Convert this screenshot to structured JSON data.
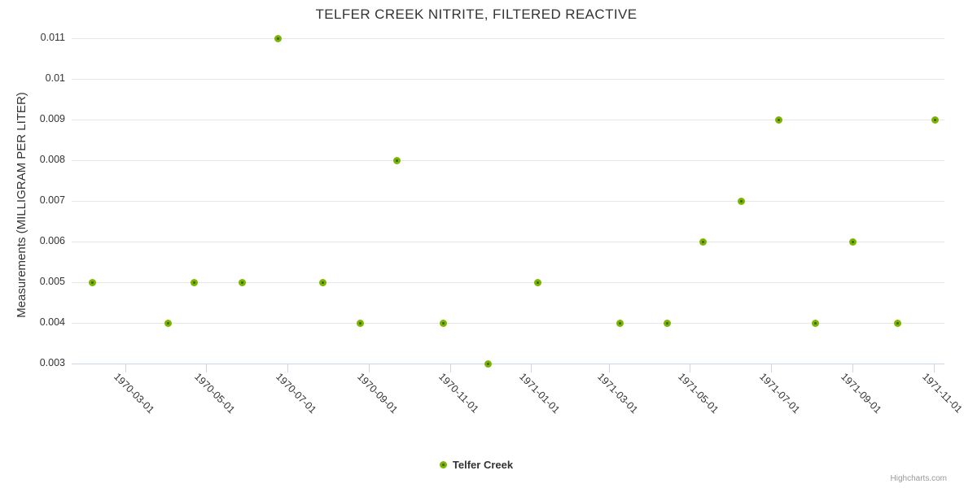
{
  "credits": "Highcharts.com",
  "chart_data": {
    "type": "scatter",
    "title": "TELFER CREEK NITRITE, FILTERED REACTIVE",
    "xlabel": "",
    "ylabel": "Measurements (MILLIGRAM PER LITER)",
    "ylim": [
      0.003,
      0.011
    ],
    "y_tick_interval": 0.001,
    "y_tick_labels": [
      "0.003",
      "0.004",
      "0.005",
      "0.006",
      "0.007",
      "0.008",
      "0.009",
      "0.01",
      "0.011"
    ],
    "x_tick_labels": [
      "1970-03-01",
      "1970-05-01",
      "1970-07-01",
      "1970-09-01",
      "1970-11-01",
      "1971-01-01",
      "1971-03-01",
      "1971-05-01",
      "1971-07-01",
      "1971-09-01",
      "1971-11-01"
    ],
    "grid": true,
    "legend_position": "bottom-center",
    "colors": {
      "marker_outer": "#7cb500",
      "marker_inner": "#3a6c00",
      "grid_line": "#e6e6e6",
      "axis_line": "#ccd6eb",
      "text": "#333333",
      "credits": "#999999"
    },
    "series": [
      {
        "name": "Telfer Creek",
        "points": [
          {
            "date": "1970-02-04",
            "value": 0.005
          },
          {
            "date": "1970-04-02",
            "value": 0.004
          },
          {
            "date": "1970-04-22",
            "value": 0.005
          },
          {
            "date": "1970-05-28",
            "value": 0.005
          },
          {
            "date": "1970-06-24",
            "value": 0.011
          },
          {
            "date": "1970-07-28",
            "value": 0.005
          },
          {
            "date": "1970-08-25",
            "value": 0.004
          },
          {
            "date": "1970-09-22",
            "value": 0.008
          },
          {
            "date": "1970-10-27",
            "value": 0.004
          },
          {
            "date": "1970-11-30",
            "value": 0.003
          },
          {
            "date": "1971-01-06",
            "value": 0.005
          },
          {
            "date": "1971-03-09",
            "value": 0.004
          },
          {
            "date": "1971-04-14",
            "value": 0.004
          },
          {
            "date": "1971-05-11",
            "value": 0.006
          },
          {
            "date": "1971-06-09",
            "value": 0.007
          },
          {
            "date": "1971-07-07",
            "value": 0.009
          },
          {
            "date": "1971-08-04",
            "value": 0.004
          },
          {
            "date": "1971-09-01",
            "value": 0.006
          },
          {
            "date": "1971-10-05",
            "value": 0.004
          },
          {
            "date": "1971-11-02",
            "value": 0.009
          }
        ]
      }
    ]
  }
}
